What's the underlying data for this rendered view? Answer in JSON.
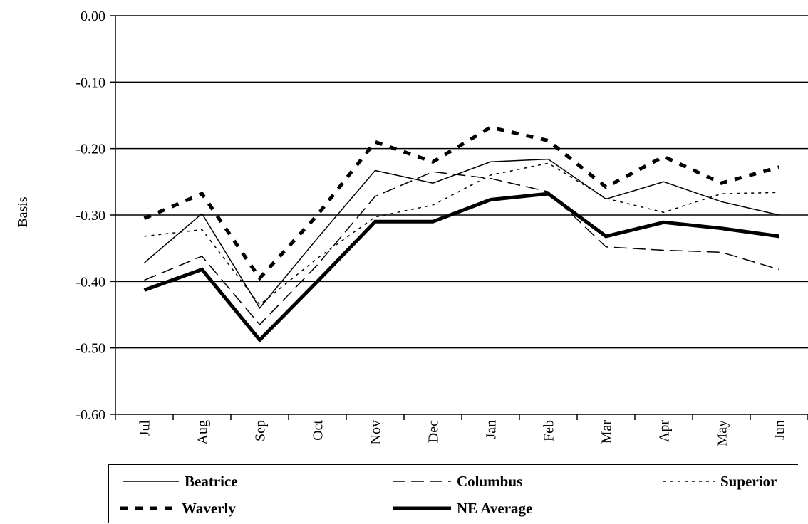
{
  "chart_data": {
    "type": "line",
    "ylabel": "Basis",
    "xlabel": "",
    "ylim": [
      -0.6,
      0.0
    ],
    "yticks": [
      "0.00",
      "-0.10",
      "-0.20",
      "-0.30",
      "-0.40",
      "-0.50",
      "-0.60"
    ],
    "ytick_values": [
      0.0,
      -0.1,
      -0.2,
      -0.3,
      -0.4,
      -0.5,
      -0.6
    ],
    "categories": [
      "Jul",
      "Aug",
      "Sep",
      "Oct",
      "Nov",
      "Dec",
      "Jan",
      "Feb",
      "Mar",
      "Apr",
      "May",
      "Jun"
    ],
    "grid": "horizontal",
    "legend_position": "bottom",
    "series": [
      {
        "name": "Beatrice",
        "style": "thin-solid",
        "color": "#000000",
        "values": [
          -0.372,
          -0.298,
          -0.44,
          -0.335,
          -0.233,
          -0.252,
          -0.22,
          -0.216,
          -0.276,
          -0.25,
          -0.28,
          -0.3
        ]
      },
      {
        "name": "Columbus",
        "style": "long-dash",
        "color": "#000000",
        "values": [
          -0.398,
          -0.362,
          -0.465,
          -0.375,
          -0.272,
          -0.235,
          -0.245,
          -0.265,
          -0.348,
          -0.353,
          -0.356,
          -0.382
        ]
      },
      {
        "name": "Superior",
        "style": "dotted",
        "color": "#000000",
        "values": [
          -0.332,
          -0.322,
          -0.435,
          -0.365,
          -0.303,
          -0.285,
          -0.24,
          -0.222,
          -0.275,
          -0.296,
          -0.268,
          -0.266
        ]
      },
      {
        "name": "Waverly",
        "style": "thick-dash",
        "color": "#000000",
        "values": [
          -0.305,
          -0.268,
          -0.395,
          -0.3,
          -0.19,
          -0.22,
          -0.168,
          -0.188,
          -0.258,
          -0.212,
          -0.252,
          -0.228
        ]
      },
      {
        "name": "NE Average",
        "style": "thick-solid",
        "color": "#000000",
        "values": [
          -0.413,
          -0.382,
          -0.488,
          -0.4,
          -0.31,
          -0.31,
          -0.277,
          -0.268,
          -0.332,
          -0.311,
          -0.32,
          -0.332
        ]
      }
    ]
  }
}
